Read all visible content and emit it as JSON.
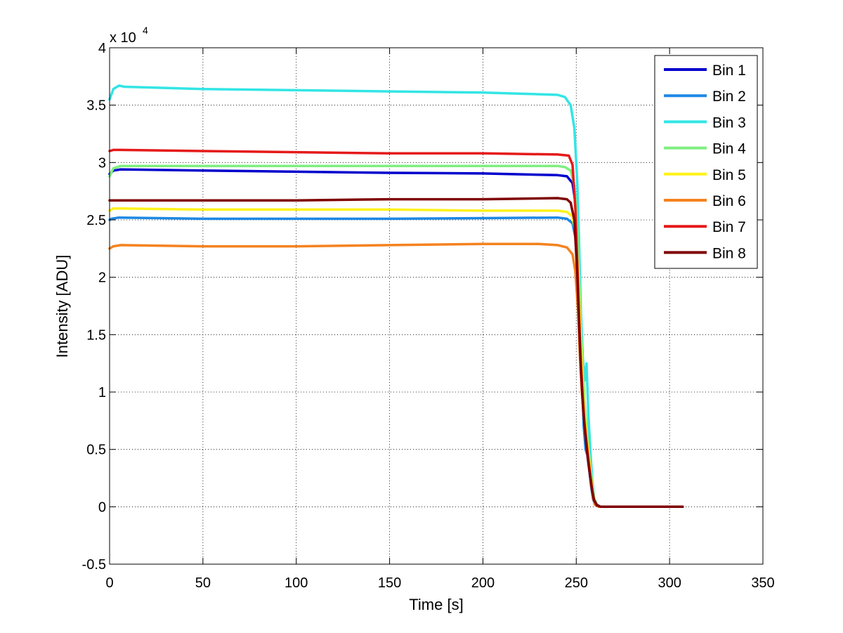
{
  "chart_data": {
    "type": "line",
    "title": "",
    "xlabel": "Time [s]",
    "ylabel": "Intensity [ADU]",
    "xlim": [
      0,
      350
    ],
    "ylim": [
      -5000,
      40000
    ],
    "x_ticks": [
      0,
      50,
      100,
      150,
      200,
      250,
      300,
      350
    ],
    "x_tick_labels": [
      "0",
      "50",
      "100",
      "150",
      "200",
      "250",
      "300",
      "350"
    ],
    "y_ticks": [
      -5000,
      0,
      5000,
      10000,
      15000,
      20000,
      25000,
      30000,
      35000,
      40000
    ],
    "y_tick_labels": [
      "-0.5",
      "0",
      "0.5",
      "1",
      "1.5",
      "2",
      "2.5",
      "3",
      "3.5",
      "4"
    ],
    "y_exponent": {
      "base": "x 10",
      "power": "4"
    },
    "grid": true,
    "legend_position": "top-right",
    "series": [
      {
        "name": "Bin 1",
        "color": "#0000CC",
        "x": [
          0,
          2,
          6,
          50,
          100,
          150,
          200,
          240,
          245,
          248,
          249.5,
          251,
          252,
          253,
          254,
          255,
          256,
          257,
          258,
          259,
          260,
          262,
          270,
          300,
          307
        ],
        "values": [
          29000,
          29300,
          29400,
          29300,
          29200,
          29100,
          29050,
          28900,
          28800,
          28200,
          26500,
          22000,
          17000,
          13000,
          9000,
          6000,
          4500,
          3200,
          1800,
          700,
          200,
          0,
          0,
          0,
          0
        ]
      },
      {
        "name": "Bin 2",
        "color": "#1E88E5",
        "x": [
          0,
          1,
          5,
          50,
          100,
          150,
          200,
          240,
          245,
          248,
          249.5,
          251,
          252,
          253,
          254,
          255,
          256,
          257,
          258,
          259,
          260,
          262,
          270,
          300,
          307
        ],
        "values": [
          25000,
          25100,
          25200,
          25100,
          25100,
          25100,
          25150,
          25200,
          25100,
          24700,
          23500,
          20000,
          15500,
          11000,
          7000,
          5000,
          4500,
          3200,
          1800,
          700,
          200,
          0,
          0,
          0,
          0
        ]
      },
      {
        "name": "Bin 3",
        "color": "#33E5E5",
        "x": [
          0,
          2,
          5,
          8,
          50,
          100,
          150,
          200,
          240,
          244,
          247,
          249,
          250.5,
          251.5,
          252.5,
          253.5,
          254.5,
          255.5,
          256.5,
          257.5,
          258.5,
          259.5,
          261,
          263,
          270,
          300,
          307
        ],
        "values": [
          35500,
          36400,
          36700,
          36600,
          36400,
          36300,
          36200,
          36100,
          35900,
          35700,
          35000,
          33000,
          28500,
          23000,
          17000,
          13000,
          11000,
          12500,
          8000,
          5000,
          2500,
          800,
          200,
          0,
          0,
          0,
          0
        ]
      },
      {
        "name": "Bin 4",
        "color": "#7FEF7F",
        "x": [
          0,
          2,
          6,
          50,
          100,
          150,
          200,
          240,
          244,
          247,
          249,
          250.5,
          251.5,
          252.5,
          253.5,
          254.5,
          255.5,
          256.5,
          257.5,
          258.5,
          259.5,
          261,
          263,
          270,
          300,
          307
        ],
        "values": [
          28800,
          29500,
          29700,
          29700,
          29700,
          29700,
          29700,
          29700,
          29600,
          29300,
          28000,
          24500,
          20000,
          15500,
          12000,
          9000,
          7000,
          5000,
          3500,
          2000,
          800,
          200,
          0,
          0,
          0,
          0
        ]
      },
      {
        "name": "Bin 5",
        "color": "#FFF21A",
        "x": [
          0,
          2,
          6,
          50,
          100,
          150,
          200,
          240,
          245,
          248,
          249.5,
          251,
          252,
          253,
          254,
          255,
          256,
          257,
          258,
          259,
          260,
          262,
          270,
          300,
          307
        ],
        "values": [
          25800,
          26000,
          26000,
          25900,
          25900,
          25900,
          25800,
          25800,
          25700,
          25300,
          24000,
          20500,
          16000,
          12000,
          9000,
          7000,
          5500,
          4000,
          2500,
          1000,
          300,
          0,
          0,
          0,
          0
        ]
      },
      {
        "name": "Bin 6",
        "color": "#F5821F",
        "x": [
          0,
          2,
          6,
          50,
          100,
          150,
          200,
          230,
          240,
          245,
          248,
          249.5,
          251,
          252,
          253,
          254,
          255,
          256,
          257,
          258,
          259,
          260,
          262,
          270,
          300,
          307
        ],
        "values": [
          22500,
          22700,
          22800,
          22700,
          22700,
          22800,
          22900,
          22900,
          22800,
          22600,
          22000,
          20500,
          17000,
          13000,
          10000,
          8000,
          6500,
          5000,
          3500,
          2000,
          800,
          200,
          0,
          0,
          0,
          0
        ]
      },
      {
        "name": "Bin 7",
        "color": "#E51A1A",
        "x": [
          0,
          2,
          6,
          50,
          100,
          150,
          200,
          240,
          246,
          248,
          249.5,
          250.5,
          251.5,
          252.5,
          253.5,
          254.5,
          255.5,
          256.5,
          257.5,
          258.5,
          259.5,
          261,
          263,
          270,
          300,
          307
        ],
        "values": [
          31000,
          31100,
          31100,
          31000,
          30900,
          30800,
          30800,
          30700,
          30600,
          29800,
          26000,
          21500,
          16500,
          12500,
          9500,
          7000,
          5500,
          4000,
          2800,
          1500,
          600,
          150,
          0,
          0,
          0,
          0
        ]
      },
      {
        "name": "Bin 8",
        "color": "#7F0000",
        "x": [
          0,
          2,
          6,
          50,
          100,
          150,
          200,
          240,
          245,
          247,
          249,
          250.5,
          251.5,
          252.5,
          253.5,
          254.5,
          255.5,
          256.5,
          257.5,
          258.5,
          259.5,
          261,
          263,
          270,
          300,
          307
        ],
        "values": [
          26700,
          26700,
          26700,
          26700,
          26700,
          26800,
          26800,
          26900,
          26800,
          26500,
          25000,
          20500,
          16000,
          12000,
          9000,
          7000,
          5200,
          3800,
          2600,
          1400,
          600,
          150,
          0,
          0,
          0,
          0
        ]
      }
    ]
  }
}
